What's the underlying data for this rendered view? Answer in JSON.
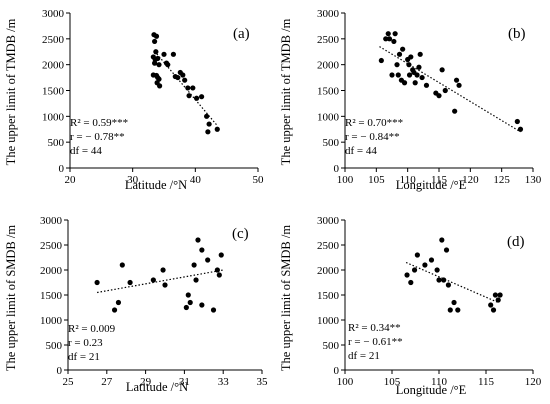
{
  "chart_data": [
    {
      "type": "scatter",
      "panel_label": "(a)",
      "xlabel": "Latitude /°N",
      "ylabel": "The upper limit of TMDB /m",
      "xlim": [
        20,
        50
      ],
      "ylim": [
        0,
        3000
      ],
      "xticks": [
        "20",
        "30",
        "40",
        "50"
      ],
      "yticks": [
        "0",
        "500",
        "1000",
        "1500",
        "2000",
        "2500",
        "3000"
      ],
      "stats": [
        "R² = 0.59***",
        "r = − 0.78**",
        "df = 44"
      ],
      "trendline": {
        "x": [
          33.5,
          43.5
        ],
        "y": [
          2260,
          820
        ]
      },
      "points": [
        {
          "x": 33.4,
          "y": 2580
        },
        {
          "x": 33.8,
          "y": 2550
        },
        {
          "x": 33.5,
          "y": 2450
        },
        {
          "x": 33.7,
          "y": 2250
        },
        {
          "x": 33.3,
          "y": 2150
        },
        {
          "x": 33.6,
          "y": 2100
        },
        {
          "x": 34.0,
          "y": 2120
        },
        {
          "x": 33.5,
          "y": 2030
        },
        {
          "x": 34.2,
          "y": 2000
        },
        {
          "x": 33.3,
          "y": 1800
        },
        {
          "x": 33.8,
          "y": 1790
        },
        {
          "x": 34.0,
          "y": 1750
        },
        {
          "x": 34.2,
          "y": 1720
        },
        {
          "x": 33.9,
          "y": 1650
        },
        {
          "x": 34.3,
          "y": 1590
        },
        {
          "x": 35.0,
          "y": 2200
        },
        {
          "x": 35.4,
          "y": 2030
        },
        {
          "x": 35.6,
          "y": 2000
        },
        {
          "x": 36.5,
          "y": 2200
        },
        {
          "x": 36.8,
          "y": 1770
        },
        {
          "x": 37.2,
          "y": 1750
        },
        {
          "x": 37.6,
          "y": 1850
        },
        {
          "x": 38.0,
          "y": 1800
        },
        {
          "x": 38.3,
          "y": 1700
        },
        {
          "x": 38.8,
          "y": 1550
        },
        {
          "x": 39.0,
          "y": 1400
        },
        {
          "x": 39.6,
          "y": 1550
        },
        {
          "x": 40.2,
          "y": 1350
        },
        {
          "x": 41.0,
          "y": 1380
        },
        {
          "x": 41.8,
          "y": 1000
        },
        {
          "x": 42.2,
          "y": 850
        },
        {
          "x": 42.0,
          "y": 700
        },
        {
          "x": 43.5,
          "y": 750
        }
      ]
    },
    {
      "type": "scatter",
      "panel_label": "(b)",
      "xlabel": "Longitude /°E",
      "ylabel": "The upper limit of TMDB /m",
      "xlim": [
        100,
        130
      ],
      "ylim": [
        0,
        3000
      ],
      "xticks": [
        "100",
        "105",
        "110",
        "115",
        "120",
        "125",
        "130"
      ],
      "yticks": [
        "0",
        "500",
        "1000",
        "1500",
        "2000",
        "2500",
        "3000"
      ],
      "stats": [
        "R² = 0.70***",
        "r = − 0.84**",
        "df = 44"
      ],
      "trendline": {
        "x": [
          105.5,
          128
        ],
        "y": [
          2350,
          700
        ]
      },
      "points": [
        {
          "x": 105.8,
          "y": 2080
        },
        {
          "x": 106.5,
          "y": 2500
        },
        {
          "x": 106.9,
          "y": 2600
        },
        {
          "x": 107.1,
          "y": 2500
        },
        {
          "x": 107.8,
          "y": 2450
        },
        {
          "x": 108.0,
          "y": 2600
        },
        {
          "x": 108.3,
          "y": 2000
        },
        {
          "x": 107.5,
          "y": 1800
        },
        {
          "x": 108.5,
          "y": 1800
        },
        {
          "x": 108.7,
          "y": 2200
        },
        {
          "x": 109.2,
          "y": 2300
        },
        {
          "x": 109.0,
          "y": 1700
        },
        {
          "x": 109.5,
          "y": 1650
        },
        {
          "x": 110.0,
          "y": 2100
        },
        {
          "x": 110.2,
          "y": 2000
        },
        {
          "x": 110.5,
          "y": 2150
        },
        {
          "x": 110.8,
          "y": 1900
        },
        {
          "x": 110.3,
          "y": 1800
        },
        {
          "x": 111.0,
          "y": 1850
        },
        {
          "x": 111.2,
          "y": 1650
        },
        {
          "x": 111.5,
          "y": 1800
        },
        {
          "x": 111.8,
          "y": 1950
        },
        {
          "x": 112.0,
          "y": 2200
        },
        {
          "x": 112.3,
          "y": 1750
        },
        {
          "x": 113.0,
          "y": 1600
        },
        {
          "x": 114.5,
          "y": 1450
        },
        {
          "x": 115.0,
          "y": 1400
        },
        {
          "x": 115.5,
          "y": 1900
        },
        {
          "x": 116.0,
          "y": 1500
        },
        {
          "x": 117.5,
          "y": 1100
        },
        {
          "x": 117.8,
          "y": 1700
        },
        {
          "x": 118.2,
          "y": 1600
        },
        {
          "x": 127.5,
          "y": 900
        },
        {
          "x": 128.0,
          "y": 750
        }
      ]
    },
    {
      "type": "scatter",
      "panel_label": "(c)",
      "xlabel": "Latitude /°N",
      "ylabel": "The upper limit of SMDB /m",
      "xlim": [
        25,
        35
      ],
      "ylim": [
        0,
        3000
      ],
      "xticks": [
        "25",
        "27",
        "29",
        "31",
        "33",
        "35"
      ],
      "yticks": [
        "0",
        "500",
        "1000",
        "1500",
        "2000",
        "2500",
        "3000"
      ],
      "stats": [
        "R² = 0.009",
        "r = 0.23",
        "df = 21"
      ],
      "trendline": {
        "x": [
          26.5,
          33
        ],
        "y": [
          1550,
          2000
        ]
      },
      "points": [
        {
          "x": 26.5,
          "y": 1750
        },
        {
          "x": 27.4,
          "y": 1200
        },
        {
          "x": 27.6,
          "y": 1350
        },
        {
          "x": 27.8,
          "y": 2100
        },
        {
          "x": 28.2,
          "y": 1750
        },
        {
          "x": 29.4,
          "y": 1800
        },
        {
          "x": 29.9,
          "y": 2000
        },
        {
          "x": 30.0,
          "y": 1700
        },
        {
          "x": 31.1,
          "y": 1250
        },
        {
          "x": 31.2,
          "y": 1500
        },
        {
          "x": 31.3,
          "y": 1350
        },
        {
          "x": 31.5,
          "y": 2100
        },
        {
          "x": 31.6,
          "y": 1800
        },
        {
          "x": 31.7,
          "y": 2600
        },
        {
          "x": 31.9,
          "y": 2400
        },
        {
          "x": 31.9,
          "y": 1300
        },
        {
          "x": 32.2,
          "y": 2200
        },
        {
          "x": 32.5,
          "y": 1200
        },
        {
          "x": 32.7,
          "y": 2000
        },
        {
          "x": 32.8,
          "y": 1900
        },
        {
          "x": 32.9,
          "y": 2300
        }
      ]
    },
    {
      "type": "scatter",
      "panel_label": "(d)",
      "xlabel": "Longitude /°E",
      "ylabel": "The upper limit of SMDB /m",
      "xlim": [
        100,
        120
      ],
      "ylim": [
        0,
        3000
      ],
      "xticks": [
        "100",
        "105",
        "110",
        "115",
        "120"
      ],
      "yticks": [
        "0",
        "500",
        "1000",
        "1500",
        "2000",
        "2500",
        "3000"
      ],
      "stats": [
        "R² = 0.34**",
        "r = − 0.61**",
        "df = 21"
      ],
      "trendline": {
        "x": [
          106.5,
          116.3
        ],
        "y": [
          2150,
          1350
        ]
      },
      "points": [
        {
          "x": 106.6,
          "y": 1900
        },
        {
          "x": 107.0,
          "y": 1750
        },
        {
          "x": 107.4,
          "y": 2000
        },
        {
          "x": 107.7,
          "y": 2300
        },
        {
          "x": 108.5,
          "y": 2100
        },
        {
          "x": 109.2,
          "y": 2200
        },
        {
          "x": 109.8,
          "y": 2000
        },
        {
          "x": 110.0,
          "y": 1800
        },
        {
          "x": 110.3,
          "y": 2600
        },
        {
          "x": 110.5,
          "y": 1800
        },
        {
          "x": 110.8,
          "y": 2400
        },
        {
          "x": 111.0,
          "y": 1700
        },
        {
          "x": 111.2,
          "y": 1200
        },
        {
          "x": 111.6,
          "y": 1350
        },
        {
          "x": 112.0,
          "y": 1200
        },
        {
          "x": 115.5,
          "y": 1300
        },
        {
          "x": 115.8,
          "y": 1200
        },
        {
          "x": 116.0,
          "y": 1500
        },
        {
          "x": 116.3,
          "y": 1400
        },
        {
          "x": 116.5,
          "y": 1500
        }
      ]
    }
  ]
}
